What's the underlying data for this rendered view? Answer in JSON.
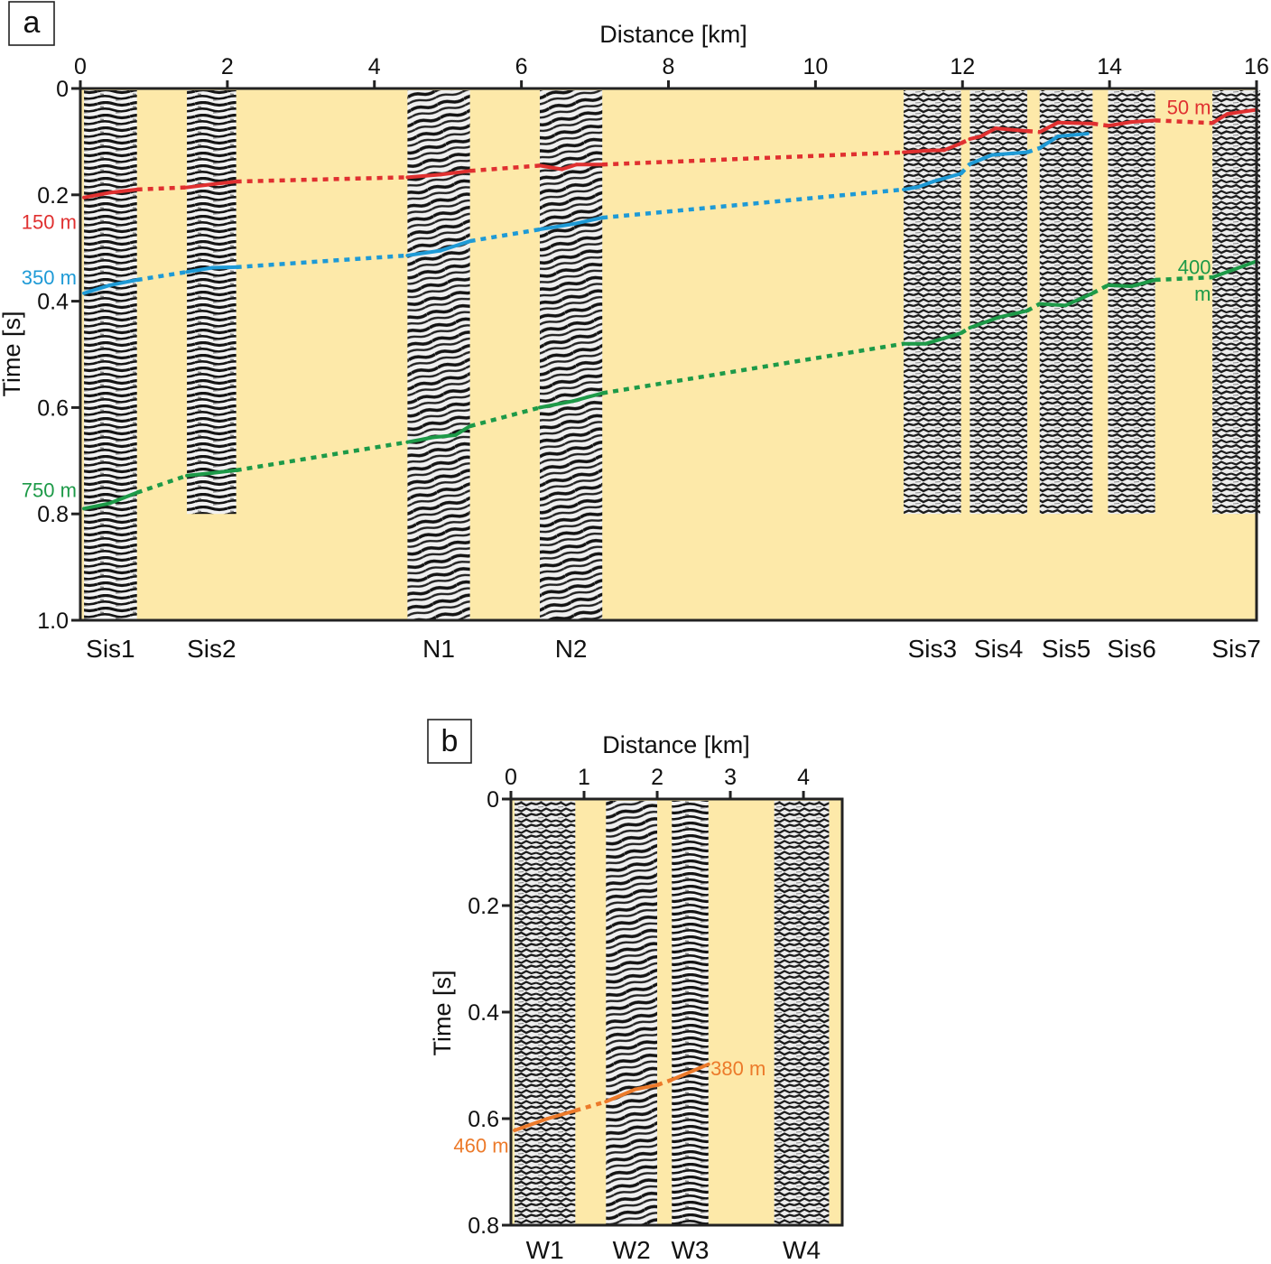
{
  "figure": {
    "background_color": "#fde9a9",
    "section_colors": {
      "dark": "#1a1a1a",
      "light": "#f2f2f2",
      "mid": "#8c8c8c"
    }
  },
  "chart_data": [
    {
      "type": "line",
      "panel_label": "a",
      "title": "",
      "xlabel": "Distance [km]",
      "ylabel": "Time [s]",
      "xlim": [
        0,
        16
      ],
      "ylim": [
        1.0,
        0
      ],
      "y_inverted": true,
      "x_ticks": [
        0,
        2,
        4,
        6,
        8,
        10,
        12,
        14,
        16
      ],
      "x_tick_labels": [
        "0",
        "2",
        "4",
        "6",
        "8",
        "10",
        "12",
        "14",
        "16"
      ],
      "y_ticks": [
        0,
        0.2,
        0.4,
        0.6,
        0.8,
        1.0
      ],
      "y_tick_labels": [
        "0",
        "0.2",
        "0.4",
        "0.6",
        "0.8",
        "1.0"
      ],
      "x_axis_position": "top",
      "grid": false,
      "seismic_sections": [
        {
          "name": "Sis1",
          "x_start": 0.05,
          "x_end": 0.77,
          "t_end": 1.0
        },
        {
          "name": "Sis2",
          "x_start": 1.45,
          "x_end": 2.12,
          "t_end": 0.8
        },
        {
          "name": "N1",
          "x_start": 4.45,
          "x_end": 5.3,
          "t_end": 1.0
        },
        {
          "name": "N2",
          "x_start": 6.25,
          "x_end": 7.1,
          "t_end": 1.0
        },
        {
          "name": "Sis3",
          "x_start": 11.2,
          "x_end": 11.98,
          "t_end": 0.8
        },
        {
          "name": "Sis4",
          "x_start": 12.1,
          "x_end": 12.88,
          "t_end": 0.8
        },
        {
          "name": "Sis5",
          "x_start": 13.05,
          "x_end": 13.77,
          "t_end": 0.8
        },
        {
          "name": "Sis6",
          "x_start": 13.98,
          "x_end": 14.62,
          "t_end": 0.8
        },
        {
          "name": "Sis7",
          "x_start": 15.4,
          "x_end": 16.05,
          "t_end": 0.8
        }
      ],
      "series": [
        {
          "name": "red horizon",
          "color": "#e03030",
          "labels": [
            {
              "text": "150 m",
              "x": -0.05,
              "y": 0.25,
              "anchor": "end"
            },
            {
              "text": "50 m",
              "x": 15.38,
              "y": 0.035,
              "anchor": "end"
            }
          ],
          "points": [
            [
              0.05,
              0.205
            ],
            [
              0.4,
              0.196
            ],
            [
              0.77,
              0.19
            ],
            [
              1.45,
              0.186
            ],
            [
              1.8,
              0.18
            ],
            [
              2.12,
              0.175
            ],
            [
              4.45,
              0.167
            ],
            [
              4.9,
              0.162
            ],
            [
              5.3,
              0.155
            ],
            [
              6.25,
              0.145
            ],
            [
              6.55,
              0.152
            ],
            [
              6.75,
              0.143
            ],
            [
              7.1,
              0.143
            ],
            [
              11.2,
              0.12
            ],
            [
              11.5,
              0.117
            ],
            [
              11.75,
              0.116
            ],
            [
              11.98,
              0.103
            ],
            [
              12.1,
              0.095
            ],
            [
              12.25,
              0.09
            ],
            [
              12.45,
              0.075
            ],
            [
              12.88,
              0.08
            ],
            [
              13.05,
              0.082
            ],
            [
              13.3,
              0.064
            ],
            [
              13.77,
              0.066
            ],
            [
              13.98,
              0.07
            ],
            [
              14.3,
              0.063
            ],
            [
              14.62,
              0.06
            ],
            [
              15.4,
              0.065
            ],
            [
              15.6,
              0.048
            ],
            [
              16.0,
              0.04
            ]
          ]
        },
        {
          "name": "blue horizon",
          "color": "#1e9ad6",
          "labels": [
            {
              "text": "350 m",
              "x": -0.05,
              "y": 0.355,
              "anchor": "end"
            }
          ],
          "points": [
            [
              0.05,
              0.385
            ],
            [
              0.4,
              0.37
            ],
            [
              0.77,
              0.36
            ],
            [
              1.45,
              0.345
            ],
            [
              1.8,
              0.337
            ],
            [
              2.12,
              0.336
            ],
            [
              4.45,
              0.314
            ],
            [
              4.9,
              0.305
            ],
            [
              5.3,
              0.287
            ],
            [
              6.25,
              0.265
            ],
            [
              6.7,
              0.255
            ],
            [
              7.1,
              0.243
            ],
            [
              11.2,
              0.19
            ],
            [
              11.4,
              0.185
            ],
            [
              11.6,
              0.175
            ],
            [
              11.98,
              0.16
            ],
            [
              12.1,
              0.142
            ],
            [
              12.4,
              0.125
            ],
            [
              12.88,
              0.12
            ],
            [
              13.05,
              0.112
            ],
            [
              13.3,
              0.09
            ],
            [
              13.7,
              0.085
            ]
          ]
        },
        {
          "name": "green horizon",
          "color": "#1d9a48",
          "labels": [
            {
              "text": "750 m",
              "x": -0.05,
              "y": 0.755,
              "anchor": "end"
            },
            {
              "text": "400",
              "x": 15.38,
              "y": 0.335,
              "anchor": "end"
            },
            {
              "text": "m",
              "x": 15.38,
              "y": 0.385,
              "anchor": "end"
            }
          ],
          "points": [
            [
              0.05,
              0.79
            ],
            [
              0.4,
              0.78
            ],
            [
              0.77,
              0.76
            ],
            [
              1.45,
              0.728
            ],
            [
              1.8,
              0.723
            ],
            [
              2.12,
              0.718
            ],
            [
              4.45,
              0.665
            ],
            [
              4.8,
              0.656
            ],
            [
              5.1,
              0.652
            ],
            [
              5.3,
              0.635
            ],
            [
              6.25,
              0.6
            ],
            [
              6.7,
              0.588
            ],
            [
              7.1,
              0.573
            ],
            [
              11.2,
              0.48
            ],
            [
              11.5,
              0.48
            ],
            [
              11.98,
              0.46
            ],
            [
              12.1,
              0.45
            ],
            [
              12.5,
              0.43
            ],
            [
              12.88,
              0.418
            ],
            [
              13.05,
              0.405
            ],
            [
              13.4,
              0.408
            ],
            [
              13.77,
              0.385
            ],
            [
              13.98,
              0.37
            ],
            [
              14.3,
              0.372
            ],
            [
              14.62,
              0.36
            ],
            [
              15.4,
              0.355
            ],
            [
              15.7,
              0.34
            ],
            [
              16.0,
              0.325
            ]
          ]
        }
      ]
    },
    {
      "type": "line",
      "panel_label": "b",
      "title": "",
      "xlabel": "Distance [km]",
      "ylabel": "Time [s]",
      "xlim": [
        0,
        4.53
      ],
      "ylim": [
        0.8,
        0
      ],
      "y_inverted": true,
      "x_ticks": [
        0,
        1,
        2,
        3,
        4
      ],
      "x_tick_labels": [
        "0",
        "1",
        "2",
        "3",
        "4"
      ],
      "y_ticks": [
        0,
        0.2,
        0.4,
        0.6,
        0.8
      ],
      "y_tick_labels": [
        "0",
        "0.2",
        "0.4",
        "0.6",
        "0.8"
      ],
      "x_axis_position": "top",
      "grid": false,
      "seismic_sections": [
        {
          "name": "W1",
          "x_start": 0.05,
          "x_end": 0.88,
          "t_end": 0.8
        },
        {
          "name": "W2",
          "x_start": 1.3,
          "x_end": 2.0,
          "t_end": 0.8
        },
        {
          "name": "W3",
          "x_start": 2.2,
          "x_end": 2.7,
          "t_end": 0.8
        },
        {
          "name": "W4",
          "x_start": 3.6,
          "x_end": 4.35,
          "t_end": 0.8
        }
      ],
      "series": [
        {
          "name": "orange horizon",
          "color": "#ec7a2a",
          "labels": [
            {
              "text": "460 m",
              "x": -0.03,
              "y": 0.65,
              "anchor": "end"
            },
            {
              "text": "380 m",
              "x": 2.73,
              "y": 0.505,
              "anchor": "start"
            }
          ],
          "points": [
            [
              0.05,
              0.622
            ],
            [
              0.5,
              0.6
            ],
            [
              0.88,
              0.585
            ],
            [
              1.3,
              0.568
            ],
            [
              1.7,
              0.545
            ],
            [
              2.0,
              0.537
            ],
            [
              2.2,
              0.527
            ],
            [
              2.7,
              0.498
            ]
          ]
        }
      ]
    }
  ]
}
